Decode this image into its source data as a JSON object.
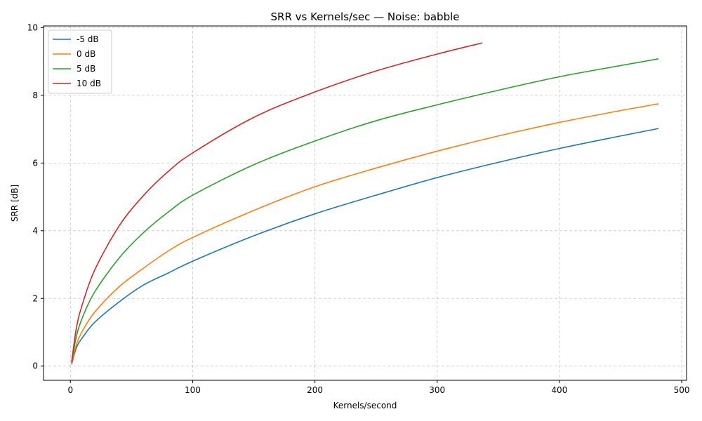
{
  "chart_data": {
    "type": "line",
    "title": "SRR vs Kernels/sec — Noise: babble",
    "xlabel": "Kernels/second",
    "ylabel": "SRR [dB]",
    "xlim": [
      -22,
      504
    ],
    "ylim": [
      -0.42,
      10.05
    ],
    "xticks": [
      0,
      100,
      200,
      300,
      400,
      500
    ],
    "yticks": [
      0,
      2,
      4,
      6,
      8,
      10
    ],
    "grid": true,
    "legend_position": "top-left",
    "series": [
      {
        "name": "-5 dB",
        "color": "#1f77b4",
        "x": [
          1,
          5,
          10,
          20,
          40,
          60,
          80,
          100,
          150,
          200,
          250,
          300,
          350,
          400,
          450,
          481
        ],
        "y": [
          0.05,
          0.55,
          0.85,
          1.3,
          1.9,
          2.4,
          2.75,
          3.1,
          3.85,
          4.5,
          5.05,
          5.57,
          6.02,
          6.43,
          6.8,
          7.02
        ]
      },
      {
        "name": "0 dB",
        "color": "#ff7f0e",
        "x": [
          1,
          5,
          10,
          20,
          40,
          60,
          80,
          100,
          150,
          200,
          250,
          300,
          350,
          400,
          450,
          481
        ],
        "y": [
          0.07,
          0.65,
          1.05,
          1.6,
          2.35,
          2.9,
          3.4,
          3.8,
          4.6,
          5.3,
          5.85,
          6.35,
          6.8,
          7.2,
          7.55,
          7.75
        ]
      },
      {
        "name": "5 dB",
        "color": "#2ca02c",
        "x": [
          1,
          5,
          10,
          20,
          40,
          60,
          80,
          100,
          150,
          200,
          250,
          300,
          350,
          400,
          450,
          481
        ],
        "y": [
          0.1,
          0.9,
          1.45,
          2.2,
          3.2,
          3.95,
          4.55,
          5.05,
          5.95,
          6.65,
          7.25,
          7.72,
          8.15,
          8.55,
          8.88,
          9.08
        ]
      },
      {
        "name": "10 dB",
        "color": "#d62728",
        "x": [
          1,
          5,
          10,
          20,
          40,
          60,
          80,
          100,
          150,
          200,
          250,
          300,
          337
        ],
        "y": [
          0.12,
          1.15,
          1.85,
          2.85,
          4.15,
          5.05,
          5.75,
          6.3,
          7.35,
          8.1,
          8.72,
          9.22,
          9.55
        ]
      }
    ]
  }
}
